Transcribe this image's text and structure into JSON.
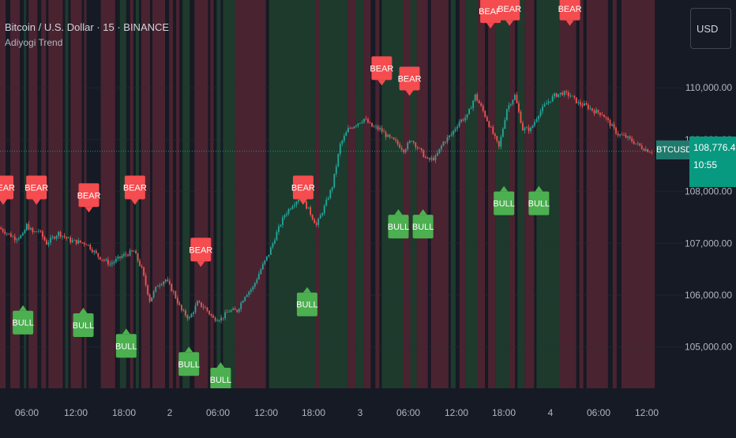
{
  "header": {
    "title": "Bitcoin / U.S. Dollar · 15 · BINANCE",
    "indicator": "Adiyogi Trend"
  },
  "currency_button": "USD",
  "symbol_tag": "BTCUSD",
  "last_price": "108,776.47",
  "countdown": "10:55",
  "colors": {
    "background": "#161a25",
    "bull_zone": "#1e3a2c",
    "bear_zone": "#4a2330",
    "candle_up": "#26a69a",
    "candle_down": "#ef5350",
    "bull_label": "#4caf50",
    "bear_label": "#f44c4f",
    "price_line": "#089981"
  },
  "chart_data": {
    "type": "candlestick",
    "title": "Bitcoin / U.S. Dollar · 15 · BINANCE",
    "x_ticks": [
      "06:00",
      "12:00",
      "18:00",
      "2",
      "06:00",
      "12:00",
      "18:00",
      "3",
      "06:00",
      "12:00",
      "18:00",
      "4",
      "06:00",
      "12:00"
    ],
    "y_ticks": [
      "110,000.00",
      "109,000.00",
      "108,000.00",
      "107,000.00",
      "106,000.00",
      "105,000.00"
    ],
    "ylim": [
      104600,
      111300
    ],
    "xlim_hours": [
      0,
      83
    ],
    "last_price": 108776.47,
    "price_path": [
      [
        0.0,
        107300
      ],
      [
        1.0,
        107200
      ],
      [
        2.0,
        107100
      ],
      [
        3.0,
        107150
      ],
      [
        3.5,
        107350
      ],
      [
        4.3,
        107200
      ],
      [
        5.0,
        107250
      ],
      [
        6.0,
        107000
      ],
      [
        7.5,
        107200
      ],
      [
        9.0,
        107050
      ],
      [
        11.0,
        107000
      ],
      [
        12.5,
        106750
      ],
      [
        14.0,
        106600
      ],
      [
        15.5,
        106750
      ],
      [
        17.0,
        106850
      ],
      [
        18.0,
        106500
      ],
      [
        19.0,
        105900
      ],
      [
        20.0,
        106200
      ],
      [
        21.0,
        106300
      ],
      [
        22.0,
        106050
      ],
      [
        23.0,
        105700
      ],
      [
        24.0,
        105550
      ],
      [
        25.0,
        105850
      ],
      [
        26.0,
        105750
      ],
      [
        27.0,
        105550
      ],
      [
        28.0,
        105550
      ],
      [
        29.0,
        105700
      ],
      [
        30.0,
        105700
      ],
      [
        31.0,
        106000
      ],
      [
        32.0,
        106150
      ],
      [
        33.0,
        106500
      ],
      [
        34.0,
        106800
      ],
      [
        35.0,
        107200
      ],
      [
        36.0,
        107550
      ],
      [
        37.0,
        107750
      ],
      [
        38.0,
        107900
      ],
      [
        39.0,
        107650
      ],
      [
        40.0,
        107350
      ],
      [
        41.0,
        107700
      ],
      [
        42.0,
        108100
      ],
      [
        43.0,
        108900
      ],
      [
        44.0,
        109200
      ],
      [
        45.0,
        109300
      ],
      [
        46.0,
        109400
      ],
      [
        47.0,
        109250
      ],
      [
        48.0,
        109200
      ],
      [
        49.0,
        109050
      ],
      [
        50.0,
        108950
      ],
      [
        51.0,
        108800
      ],
      [
        52.0,
        109000
      ],
      [
        53.0,
        108800
      ],
      [
        54.0,
        108600
      ],
      [
        55.0,
        108650
      ],
      [
        56.0,
        108950
      ],
      [
        57.0,
        109100
      ],
      [
        58.0,
        109350
      ],
      [
        59.0,
        109450
      ],
      [
        60.0,
        109850
      ],
      [
        61.0,
        109550
      ],
      [
        62.0,
        109200
      ],
      [
        63.0,
        108850
      ],
      [
        64.0,
        109600
      ],
      [
        65.0,
        109850
      ],
      [
        66.0,
        109200
      ],
      [
        67.0,
        109200
      ],
      [
        68.0,
        109500
      ],
      [
        69.0,
        109700
      ],
      [
        70.0,
        109850
      ],
      [
        71.0,
        109900
      ],
      [
        72.0,
        109850
      ],
      [
        73.0,
        109700
      ],
      [
        74.0,
        109650
      ],
      [
        75.0,
        109550
      ],
      [
        76.0,
        109500
      ],
      [
        77.0,
        109300
      ],
      [
        78.0,
        109100
      ],
      [
        79.0,
        109050
      ],
      [
        80.0,
        108950
      ],
      [
        81.0,
        108850
      ],
      [
        82.0,
        108776
      ]
    ],
    "zones": [
      {
        "start": 0.0,
        "end": 0.7,
        "trend": "bear"
      },
      {
        "start": 1.3,
        "end": 2.5,
        "trend": "bear"
      },
      {
        "start": 3.0,
        "end": 3.3,
        "trend": "bull"
      },
      {
        "start": 3.6,
        "end": 4.7,
        "trend": "bear"
      },
      {
        "start": 5.2,
        "end": 5.8,
        "trend": "bear"
      },
      {
        "start": 6.1,
        "end": 7.9,
        "trend": "bear"
      },
      {
        "start": 8.2,
        "end": 8.6,
        "trend": "bull"
      },
      {
        "start": 8.9,
        "end": 10.3,
        "trend": "bear"
      },
      {
        "start": 10.6,
        "end": 10.9,
        "trend": "bear"
      },
      {
        "start": 12.7,
        "end": 14.5,
        "trend": "bear"
      },
      {
        "start": 15.1,
        "end": 15.9,
        "trend": "bull"
      },
      {
        "start": 16.4,
        "end": 16.8,
        "trend": "bear"
      },
      {
        "start": 17.1,
        "end": 17.5,
        "trend": "bull"
      },
      {
        "start": 17.8,
        "end": 18.9,
        "trend": "bear"
      },
      {
        "start": 19.2,
        "end": 20.8,
        "trend": "bear"
      },
      {
        "start": 21.3,
        "end": 21.8,
        "trend": "bear"
      },
      {
        "start": 22.2,
        "end": 22.6,
        "trend": "bear"
      },
      {
        "start": 23.0,
        "end": 23.9,
        "trend": "bull"
      },
      {
        "start": 24.5,
        "end": 26.2,
        "trend": "bear"
      },
      {
        "start": 26.5,
        "end": 26.9,
        "trend": "bear"
      },
      {
        "start": 27.3,
        "end": 27.8,
        "trend": "bull"
      },
      {
        "start": 28.1,
        "end": 29.6,
        "trend": "bull"
      },
      {
        "start": 29.6,
        "end": 33.5,
        "trend": "bear"
      },
      {
        "start": 33.9,
        "end": 39.7,
        "trend": "bull"
      },
      {
        "start": 39.7,
        "end": 40.2,
        "trend": "bear"
      },
      {
        "start": 40.2,
        "end": 43.8,
        "trend": "bull"
      },
      {
        "start": 43.8,
        "end": 44.8,
        "trend": "bear"
      },
      {
        "start": 44.8,
        "end": 45.8,
        "trend": "bull"
      },
      {
        "start": 45.8,
        "end": 46.7,
        "trend": "bear"
      },
      {
        "start": 47.3,
        "end": 47.8,
        "trend": "bear"
      },
      {
        "start": 48.1,
        "end": 50.8,
        "trend": "bull"
      },
      {
        "start": 50.8,
        "end": 51.7,
        "trend": "bear"
      },
      {
        "start": 51.7,
        "end": 52.5,
        "trend": "bull"
      },
      {
        "start": 52.5,
        "end": 53.9,
        "trend": "bear"
      },
      {
        "start": 54.3,
        "end": 56.5,
        "trend": "bear"
      },
      {
        "start": 56.8,
        "end": 57.4,
        "trend": "bull"
      },
      {
        "start": 57.9,
        "end": 58.6,
        "trend": "bear"
      },
      {
        "start": 58.6,
        "end": 60.2,
        "trend": "bull"
      },
      {
        "start": 60.2,
        "end": 61.1,
        "trend": "bear"
      },
      {
        "start": 61.5,
        "end": 62.4,
        "trend": "bear"
      },
      {
        "start": 62.4,
        "end": 64.2,
        "trend": "bull"
      },
      {
        "start": 64.2,
        "end": 64.9,
        "trend": "bear"
      },
      {
        "start": 65.2,
        "end": 66.1,
        "trend": "bull"
      },
      {
        "start": 66.1,
        "end": 67.3,
        "trend": "bear"
      },
      {
        "start": 67.6,
        "end": 69.2,
        "trend": "bull"
      },
      {
        "start": 69.2,
        "end": 70.5,
        "trend": "bull"
      },
      {
        "start": 70.5,
        "end": 72.6,
        "trend": "bear"
      },
      {
        "start": 73.0,
        "end": 73.5,
        "trend": "bear"
      },
      {
        "start": 73.9,
        "end": 76.6,
        "trend": "bear"
      },
      {
        "start": 77.2,
        "end": 77.7,
        "trend": "bear"
      },
      {
        "start": 78.3,
        "end": 82.5,
        "trend": "bear"
      }
    ],
    "signals": [
      {
        "type": "BEAR",
        "t": 0.4,
        "price": 107850
      },
      {
        "type": "BULL",
        "t": 2.9,
        "price": 105700
      },
      {
        "type": "BEAR",
        "t": 4.6,
        "price": 107850
      },
      {
        "type": "BULL",
        "t": 10.5,
        "price": 105650
      },
      {
        "type": "BEAR",
        "t": 11.2,
        "price": 107700
      },
      {
        "type": "BULL",
        "t": 15.9,
        "price": 105250
      },
      {
        "type": "BEAR",
        "t": 17.0,
        "price": 107850
      },
      {
        "type": "BULL",
        "t": 23.8,
        "price": 104900
      },
      {
        "type": "BEAR",
        "t": 25.3,
        "price": 106650
      },
      {
        "type": "BULL",
        "t": 27.8,
        "price": 104600
      },
      {
        "type": "BEAR",
        "t": 38.2,
        "price": 107850
      },
      {
        "type": "BULL",
        "t": 38.7,
        "price": 106050
      },
      {
        "type": "BEAR",
        "t": 48.1,
        "price": 110150
      },
      {
        "type": "BULL",
        "t": 50.2,
        "price": 107550
      },
      {
        "type": "BEAR",
        "t": 51.6,
        "price": 109950
      },
      {
        "type": "BULL",
        "t": 53.3,
        "price": 107550
      },
      {
        "type": "BEAR",
        "t": 61.8,
        "price": 111250
      },
      {
        "type": "BEAR",
        "t": 64.2,
        "price": 111300
      },
      {
        "type": "BULL",
        "t": 63.5,
        "price": 108000
      },
      {
        "type": "BULL",
        "t": 67.9,
        "price": 108000
      },
      {
        "type": "BEAR",
        "t": 71.8,
        "price": 111300
      }
    ]
  }
}
